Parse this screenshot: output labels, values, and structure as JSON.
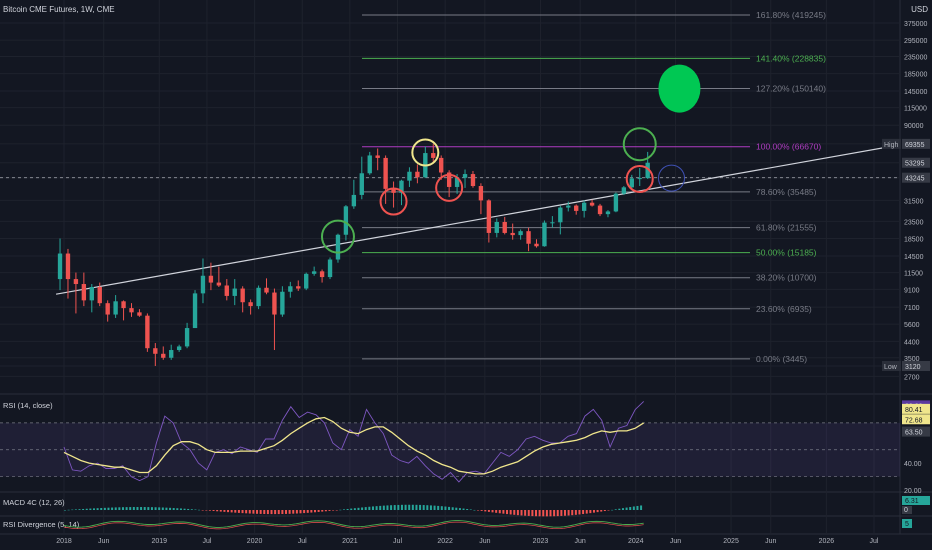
{
  "header": {
    "title": "Bitcoin CME Futures, 1W, CME"
  },
  "currency": "USD",
  "colors": {
    "bg": "#131722",
    "up": "#26a69a",
    "down": "#ef5350",
    "green": "#4caf50",
    "magenta": "#b03cc2",
    "neutral": "#787b86"
  },
  "chart_data": [
    {
      "type": "candlestick",
      "title": "Bitcoin CME Futures, 1W, CME",
      "y_scale": "log",
      "ylim": [
        2200,
        500000
      ],
      "y_ticks": [
        375000,
        295000,
        235000,
        185000,
        145000,
        115000,
        90000,
        69355,
        53295,
        43245,
        31500,
        23500,
        18500,
        14500,
        11500,
        9100,
        7100,
        5600,
        4400,
        3500,
        3120,
        2700
      ],
      "x_ticks": [
        "2018",
        "Jun",
        "2019",
        "Jul",
        "2020",
        "Jul",
        "2021",
        "Jul",
        "2022",
        "Jun",
        "2023",
        "Jun",
        "2024",
        "Jun",
        "2025",
        "Jun",
        "2026",
        "Jul"
      ],
      "price_labels": {
        "high_label": "High",
        "high": "69355",
        "last": "53295",
        "current": "43245",
        "low_label": "Low",
        "low": "3120"
      },
      "fib_levels": [
        {
          "label": "161.80% (419245)",
          "value": 419245,
          "color": "#787b86"
        },
        {
          "label": "141.40% (228835)",
          "value": 228835,
          "color": "#4caf50"
        },
        {
          "label": "127.20% (150140)",
          "value": 150140,
          "color": "#787b86"
        },
        {
          "label": "100.00% (66670)",
          "value": 66670,
          "color": "#b03cc2"
        },
        {
          "label": "78.60% (35485)",
          "value": 35485,
          "color": "#787b86"
        },
        {
          "label": "61.80% (21555)",
          "value": 21555,
          "color": "#787b86"
        },
        {
          "label": "50.00% (15185)",
          "value": 15185,
          "color": "#4caf50"
        },
        {
          "label": "38.20% (10700)",
          "value": 10700,
          "color": "#787b86"
        },
        {
          "label": "23.60% (6935)",
          "value": 6935,
          "color": "#787b86"
        },
        {
          "label": "0.00% (3445)",
          "value": 3445,
          "color": "#787b86"
        }
      ],
      "dashed_level": 43245,
      "trendline": [
        {
          "x": "2017-12",
          "y": 8500
        },
        {
          "x": "2026-10",
          "y": 68000
        }
      ],
      "series": [
        {
          "values": [
            [
              "2017-12",
              10500,
              18500,
              9000,
              15000
            ],
            [
              "2018-01",
              15000,
              16000,
              8000,
              10500
            ],
            [
              "2018-02",
              10500,
              11500,
              6500,
              9800
            ],
            [
              "2018-03",
              9800,
              11500,
              7200,
              7800
            ],
            [
              "2018-04",
              7800,
              9800,
              6600,
              9400
            ],
            [
              "2018-05",
              9400,
              10000,
              7200,
              7500
            ],
            [
              "2018-06",
              7500,
              7800,
              5800,
              6400
            ],
            [
              "2018-07",
              6400,
              8400,
              6100,
              7700
            ],
            [
              "2018-08",
              7700,
              7800,
              5900,
              7000
            ],
            [
              "2018-09",
              7000,
              7500,
              6200,
              6600
            ],
            [
              "2018-10",
              6600,
              6900,
              6200,
              6300
            ],
            [
              "2018-11",
              6300,
              6500,
              3800,
              4000
            ],
            [
              "2018-12",
              4000,
              4300,
              3120,
              3700
            ],
            [
              "2019-01",
              3700,
              4100,
              3400,
              3500
            ],
            [
              "2019-02",
              3500,
              4200,
              3400,
              3900
            ],
            [
              "2019-03",
              3900,
              4200,
              3800,
              4100
            ],
            [
              "2019-04",
              4100,
              5700,
              4000,
              5300
            ],
            [
              "2019-05",
              5300,
              9000,
              5300,
              8600
            ],
            [
              "2019-06",
              8600,
              14000,
              7500,
              11000
            ],
            [
              "2019-07",
              11000,
              13200,
              9000,
              10000
            ],
            [
              "2019-08",
              10000,
              12500,
              9400,
              9600
            ],
            [
              "2019-09",
              9600,
              10500,
              7800,
              8300
            ],
            [
              "2019-10",
              8300,
              10500,
              7300,
              9200
            ],
            [
              "2019-11",
              9200,
              9500,
              6600,
              7600
            ],
            [
              "2019-12",
              7600,
              7900,
              6400,
              7200
            ],
            [
              "2020-01",
              7200,
              9600,
              6900,
              9300
            ],
            [
              "2020-02",
              9300,
              10600,
              8500,
              8700
            ],
            [
              "2020-03",
              8700,
              9200,
              3900,
              6400
            ],
            [
              "2020-04",
              6400,
              9500,
              6200,
              8800
            ],
            [
              "2020-05",
              8800,
              10100,
              8100,
              9500
            ],
            [
              "2020-06",
              9500,
              10300,
              8900,
              9200
            ],
            [
              "2020-07",
              9200,
              11500,
              9000,
              11300
            ],
            [
              "2020-08",
              11300,
              12500,
              11000,
              11700
            ],
            [
              "2020-09",
              11700,
              12000,
              10000,
              10800
            ],
            [
              "2020-10",
              10800,
              14200,
              10500,
              13800
            ],
            [
              "2020-11",
              13800,
              19800,
              13200,
              19500
            ],
            [
              "2020-12",
              19500,
              29500,
              18000,
              29000
            ],
            [
              "2021-01",
              29000,
              42000,
              28000,
              34000
            ],
            [
              "2021-02",
              34000,
              58000,
              32000,
              46000
            ],
            [
              "2021-03",
              46000,
              62000,
              45000,
              59000
            ],
            [
              "2021-04",
              59000,
              65000,
              48000,
              57000
            ],
            [
              "2021-05",
              57000,
              59000,
              30000,
              37000
            ],
            [
              "2021-06",
              37000,
              41000,
              28500,
              35000
            ],
            [
              "2021-07",
              35000,
              42000,
              29500,
              41500
            ],
            [
              "2021-08",
              41500,
              50000,
              38000,
              47000
            ],
            [
              "2021-09",
              47000,
              52000,
              40000,
              43500
            ],
            [
              "2021-10",
              43500,
              67000,
              43000,
              61000
            ],
            [
              "2021-11",
              61000,
              69355,
              54000,
              57000
            ],
            [
              "2021-12",
              57000,
              59000,
              42000,
              46500
            ],
            [
              "2022-01",
              46500,
              48000,
              33000,
              38000
            ],
            [
              "2022-02",
              38000,
              45500,
              34500,
              43200
            ],
            [
              "2022-03",
              43200,
              48500,
              37500,
              45500
            ],
            [
              "2022-04",
              45500,
              47500,
              37600,
              38500
            ],
            [
              "2022-05",
              38500,
              40000,
              26000,
              31500
            ],
            [
              "2022-06",
              31500,
              32000,
              17500,
              20000
            ],
            [
              "2022-07",
              20000,
              24500,
              18800,
              23300
            ],
            [
              "2022-08",
              23300,
              25000,
              19600,
              20000
            ],
            [
              "2022-09",
              20000,
              22800,
              18200,
              19400
            ],
            [
              "2022-10",
              19400,
              21000,
              18200,
              20500
            ],
            [
              "2022-11",
              20500,
              21500,
              15500,
              17200
            ],
            [
              "2022-12",
              17200,
              18300,
              16300,
              16600
            ],
            [
              "2023-01",
              16600,
              23800,
              16500,
              23100
            ],
            [
              "2023-02",
              23100,
              25300,
              21500,
              23200
            ],
            [
              "2023-03",
              23200,
              29200,
              19600,
              28500
            ],
            [
              "2023-04",
              28500,
              31000,
              27000,
              29300
            ],
            [
              "2023-05",
              29300,
              29800,
              25800,
              27200
            ],
            [
              "2023-06",
              27200,
              31500,
              24800,
              30500
            ],
            [
              "2023-07",
              30500,
              31800,
              28900,
              29300
            ],
            [
              "2023-08",
              29300,
              30000,
              25300,
              26000
            ],
            [
              "2023-09",
              26000,
              27500,
              24900,
              27000
            ],
            [
              "2023-10",
              27000,
              35200,
              26700,
              34600
            ],
            [
              "2023-11",
              34600,
              38500,
              34000,
              37800
            ],
            [
              "2023-12",
              37800,
              45000,
              37500,
              42800
            ],
            [
              "2024-01",
              42800,
              49500,
              38500,
              43000
            ],
            [
              "2024-02",
              43000,
              62000,
              42500,
              53295
            ]
          ]
        }
      ],
      "annotations": [
        {
          "shape": "circle",
          "color": "#4caf50",
          "x": "2020-11",
          "y": 19000
        },
        {
          "shape": "circle",
          "color": "#ef5350",
          "x": "2021-06",
          "y": 31000
        },
        {
          "shape": "circle",
          "color": "#f0e68c",
          "x": "2021-10",
          "y": 61500
        },
        {
          "shape": "circle",
          "color": "#ef5350",
          "x": "2022-01",
          "y": 37500
        },
        {
          "shape": "circle",
          "color": "#ef5350",
          "x": "2024-01",
          "y": 42500
        },
        {
          "shape": "circle",
          "color": "#4caf50",
          "x": "2024-01",
          "y": 69000
        },
        {
          "shape": "circle",
          "color": "#3f51b5",
          "x": "2024-05",
          "y": 43000
        },
        {
          "shape": "filled-circle",
          "color": "#00c853",
          "x": "2024-06",
          "y": 150000
        }
      ]
    },
    {
      "type": "line",
      "title": "RSI (14, close)",
      "ylim": [
        20,
        90
      ],
      "y_ticks": [
        "40.00",
        "20.00"
      ],
      "bands": [
        70,
        50,
        30
      ],
      "value_labels": [
        "83.00",
        "80.41",
        "72.68",
        "63.50"
      ],
      "series": [
        {
          "name": "RSI",
          "color": "#7e57c2",
          "values": [
            52,
            35,
            34,
            38,
            40,
            36,
            36,
            38,
            30,
            27,
            30,
            55,
            75,
            70,
            55,
            50,
            40,
            35,
            48,
            50,
            47,
            52,
            50,
            48,
            58,
            58,
            72,
            82,
            74,
            78,
            76,
            70,
            55,
            50,
            65,
            60,
            80,
            70,
            62,
            46,
            42,
            40,
            45,
            38,
            32,
            28,
            33,
            26,
            33,
            34,
            32,
            40,
            48,
            45,
            50,
            58,
            60,
            57,
            55,
            55,
            60,
            62,
            75,
            80,
            72,
            52,
            66,
            68,
            80,
            86
          ]
        },
        {
          "name": "MA",
          "color": "#f0e68c",
          "values": [
            48,
            45,
            42,
            40,
            39,
            38,
            37,
            37,
            35,
            33,
            33,
            38,
            46,
            53,
            56,
            56,
            54,
            50,
            48,
            48,
            48,
            49,
            49,
            49,
            51,
            53,
            57,
            62,
            66,
            70,
            73,
            74,
            71,
            66,
            63,
            62,
            65,
            67,
            67,
            63,
            58,
            53,
            49,
            46,
            42,
            39,
            37,
            34,
            33,
            32,
            32,
            34,
            37,
            39,
            41,
            45,
            49,
            52,
            54,
            55,
            56,
            57,
            59,
            62,
            64,
            63,
            64,
            64,
            66,
            70
          ]
        }
      ]
    },
    {
      "type": "bar",
      "title": "MACD 4C (12, 26)",
      "y_ticks": [
        "6.31",
        "0"
      ]
    },
    {
      "type": "line",
      "title": "RSI Divergence (5, 14)",
      "value_label": "5"
    }
  ]
}
